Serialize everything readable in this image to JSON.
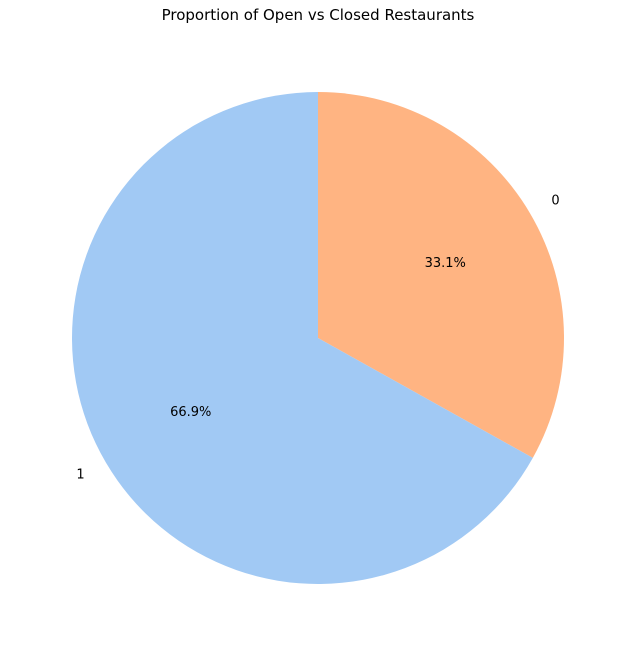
{
  "chart_data": {
    "type": "pie",
    "title": "Proportion of Open vs Closed Restaurants",
    "start_angle_deg": 90,
    "direction": "clockwise",
    "slices": [
      {
        "label": "0",
        "percent": 33.1,
        "percent_label": "33.1%",
        "color": "#ffb482"
      },
      {
        "label": "1",
        "percent": 66.9,
        "percent_label": "66.9%",
        "color": "#a1c9f4"
      }
    ]
  }
}
